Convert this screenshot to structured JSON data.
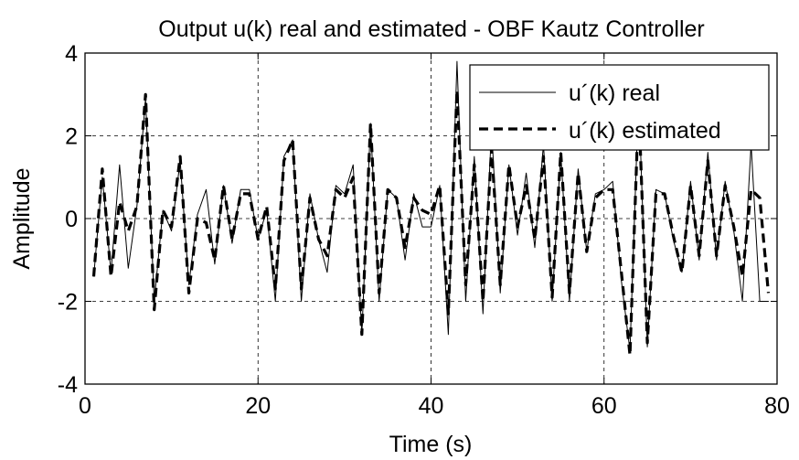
{
  "chart_data": {
    "type": "line",
    "title": "Output u(k) real and estimated - OBF Kautz Controller",
    "xlabel": "Time (s)",
    "ylabel": "Amplitude",
    "xlim": [
      0,
      80
    ],
    "ylim": [
      -4,
      4
    ],
    "xticks": [
      0,
      20,
      40,
      60,
      80
    ],
    "yticks": [
      -4,
      -2,
      0,
      2,
      4
    ],
    "grid": true,
    "legend_position": "top-right",
    "series": [
      {
        "name": "u´(k) real",
        "style": "thin-solid",
        "color": "#000000",
        "x": [
          1,
          2,
          3,
          4,
          5,
          6,
          7,
          8,
          9,
          10,
          11,
          12,
          13,
          14,
          15,
          16,
          17,
          18,
          19,
          20,
          21,
          22,
          23,
          24,
          25,
          26,
          27,
          28,
          29,
          30,
          31,
          32,
          33,
          34,
          35,
          36,
          37,
          38,
          39,
          40,
          41,
          42,
          43,
          44,
          45,
          46,
          47,
          48,
          49,
          50,
          51,
          52,
          53,
          54,
          55,
          56,
          57,
          58,
          59,
          60,
          61,
          62,
          63,
          64,
          65,
          66,
          67,
          68,
          69,
          70,
          71,
          72,
          73,
          74,
          75,
          76,
          77,
          78,
          79
        ],
        "values": [
          -1.4,
          1.0,
          -1.3,
          1.3,
          -1.2,
          0.3,
          2.9,
          -2.0,
          0.2,
          -0.3,
          1.4,
          -1.6,
          0.1,
          0.7,
          -1.1,
          0.8,
          -0.6,
          0.7,
          0.7,
          -0.5,
          0.2,
          -2.0,
          1.5,
          1.9,
          -2.0,
          0.6,
          -0.5,
          -1.3,
          0.8,
          0.6,
          1.3,
          -2.8,
          2.3,
          -2.0,
          0.7,
          0.5,
          -1.0,
          0.6,
          -0.2,
          -0.2,
          0.8,
          -2.8,
          3.8,
          -2.0,
          1.5,
          -2.3,
          2.2,
          -1.8,
          1.3,
          -0.4,
          1.1,
          -0.7,
          1.8,
          -2.0,
          1.6,
          -2.0,
          1.2,
          -0.8,
          0.6,
          0.7,
          0.9,
          -1.5,
          -3.2,
          3.0,
          -3.1,
          0.7,
          0.6,
          -0.5,
          -1.3,
          0.9,
          -1.0,
          1.6,
          -1.0,
          0.9,
          -0.3,
          -2.0,
          1.8,
          -2.0,
          -2.0
        ]
      },
      {
        "name": "u´(k) estimated",
        "style": "thick-dashed",
        "color": "#000000",
        "x": [
          1,
          2,
          3,
          4,
          5,
          6,
          7,
          8,
          9,
          10,
          11,
          12,
          13,
          14,
          15,
          16,
          17,
          18,
          19,
          20,
          21,
          22,
          23,
          24,
          25,
          26,
          27,
          28,
          29,
          30,
          31,
          32,
          33,
          34,
          35,
          36,
          37,
          38,
          39,
          40,
          41,
          42,
          43,
          44,
          45,
          46,
          47,
          48,
          49,
          50,
          51,
          52,
          53,
          54,
          55,
          56,
          57,
          58,
          59,
          60,
          61,
          62,
          63,
          64,
          65,
          66,
          67,
          68,
          69,
          70,
          71,
          72,
          73,
          74,
          75,
          76,
          77,
          78,
          79
        ],
        "values": [
          -1.4,
          1.2,
          -1.4,
          0.4,
          -0.3,
          0.3,
          3.0,
          -2.2,
          0.2,
          -0.2,
          1.5,
          -1.8,
          0.0,
          -0.1,
          -1.0,
          0.8,
          -0.5,
          0.6,
          0.6,
          -0.5,
          0.3,
          -1.7,
          1.4,
          1.9,
          -1.7,
          0.5,
          -0.5,
          -0.9,
          0.7,
          0.5,
          1.0,
          -2.8,
          2.3,
          -1.8,
          0.7,
          0.5,
          -0.7,
          0.5,
          0.2,
          0.1,
          0.8,
          -2.3,
          3.1,
          -1.6,
          1.3,
          -2.0,
          1.7,
          -1.6,
          1.3,
          -0.2,
          0.8,
          -0.5,
          1.5,
          -1.9,
          1.6,
          -1.8,
          1.1,
          -0.8,
          0.5,
          0.7,
          0.7,
          -1.3,
          -3.3,
          2.8,
          -3.0,
          0.6,
          0.6,
          -0.4,
          -1.3,
          0.8,
          -0.9,
          1.4,
          -0.9,
          0.8,
          -0.2,
          -1.4,
          0.7,
          0.5,
          -1.8
        ]
      }
    ]
  }
}
